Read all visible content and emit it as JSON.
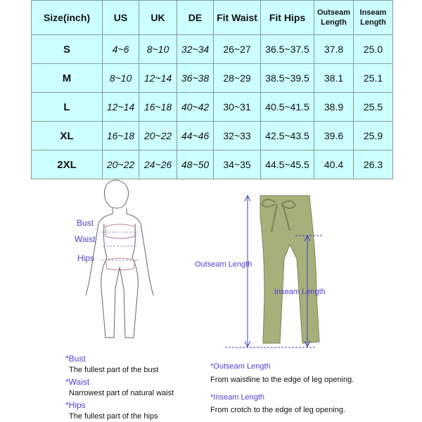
{
  "table": {
    "headers": [
      "Size(inch)",
      "US",
      "UK",
      "DE",
      "Fit Waist",
      "Fit Hips",
      "Outseam Length",
      "Inseam Length"
    ],
    "rows": [
      [
        "S",
        "4~6",
        "8~10",
        "32~34",
        "26~27",
        "36.5~37.5",
        "37.8",
        "25.0"
      ],
      [
        "M",
        "8~10",
        "12~14",
        "36~38",
        "28~29",
        "38.5~39.5",
        "38.1",
        "25.1"
      ],
      [
        "L",
        "12~14",
        "16~18",
        "40~42",
        "30~31",
        "40.5~41.5",
        "38.9",
        "25.5"
      ],
      [
        "XL",
        "16~18",
        "20~22",
        "44~46",
        "32~33",
        "42.5~43.5",
        "39.6",
        "25.9"
      ],
      [
        "2XL",
        "20~22",
        "24~26",
        "48~50",
        "34~35",
        "44.5~45.5",
        "40.4",
        "26.3"
      ]
    ]
  },
  "figure": {
    "bust": "Bust",
    "waist": "Waist",
    "hips": "Hips"
  },
  "pants": {
    "outseam": "Outseam Length",
    "inseam": "Inseam Length",
    "color": "#a7b07a"
  },
  "notes_left": [
    {
      "term": "*Bust",
      "desc": "The fullest part of the bust"
    },
    {
      "term": "*Waist",
      "desc": "Narrowest part of natural waist"
    },
    {
      "term": "*Hips",
      "desc": "The fullest part of the hips"
    }
  ],
  "notes_right": [
    {
      "term": "*Outseam Length",
      "desc": "From waistline to the edge of leg opening."
    },
    {
      "term": "*Inseam Length",
      "desc": "From crotch to the edge of leg opening."
    }
  ],
  "colors": {
    "table_bg": "#ccffff",
    "label": "#4b3fcf"
  }
}
